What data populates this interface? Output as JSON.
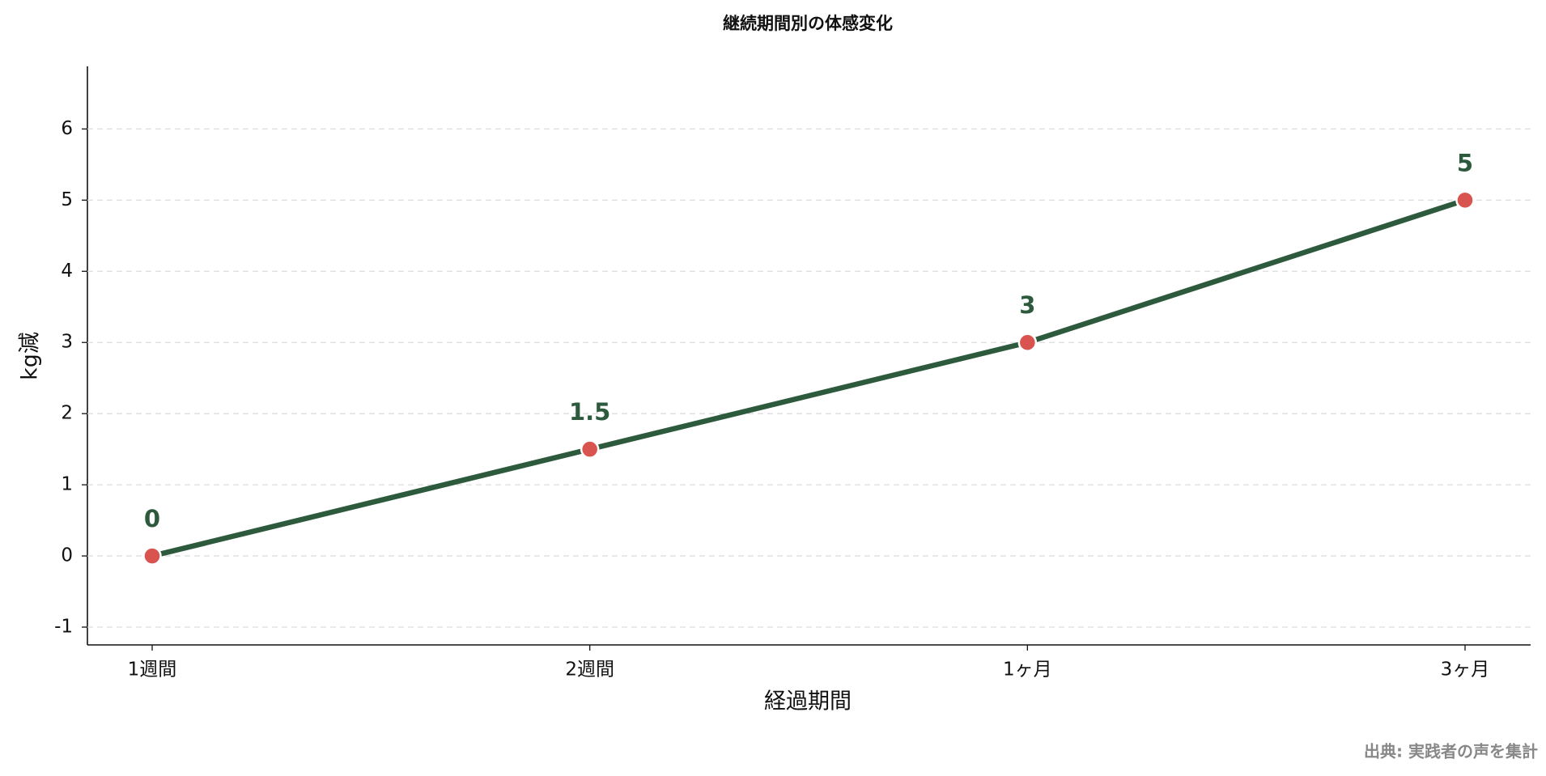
{
  "chart_data": {
    "type": "line",
    "title": "継続期間別の体感変化",
    "x_label": "経過期間",
    "y_label": "kg減",
    "source": "出典: 実践者の声を集計",
    "categories": [
      "1週間",
      "2週間",
      "1ヶ月",
      "3ヶ月"
    ],
    "series": [
      {
        "name": "kg減",
        "color": "#2d5a3d",
        "marker_color": "#d9534f",
        "values": [
          0,
          1.5,
          3,
          5
        ]
      }
    ],
    "ylim": [
      -1.25,
      6.88
    ],
    "yticks": [
      -1,
      0,
      1,
      2,
      3,
      4,
      5,
      6
    ],
    "grid": true
  }
}
